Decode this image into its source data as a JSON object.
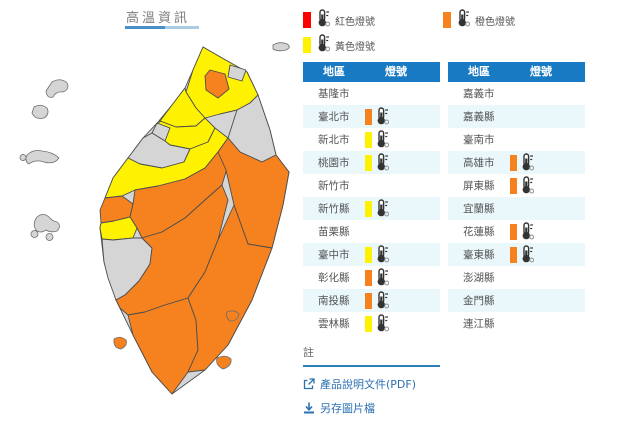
{
  "title": "高溫資訊",
  "legend": [
    {
      "key": "red",
      "label": "紅色燈號",
      "color": "#ff0000"
    },
    {
      "key": "yellow",
      "label": "黃色燈號",
      "color": "#fff200"
    },
    {
      "key": "orange",
      "label": "橙色燈號",
      "color": "#f5821f"
    }
  ],
  "level_colors": {
    "none": "#d5d5d5",
    "yellow": "#fff200",
    "orange": "#f5821f",
    "red": "#ff0000"
  },
  "table_headers": {
    "region": "地區",
    "signal": "燈號"
  },
  "tables": [
    {
      "rows": [
        {
          "region": "基隆市",
          "signal": "none"
        },
        {
          "region": "臺北市",
          "signal": "orange"
        },
        {
          "region": "新北市",
          "signal": "yellow"
        },
        {
          "region": "桃園市",
          "signal": "yellow"
        },
        {
          "region": "新竹市",
          "signal": "none"
        },
        {
          "region": "新竹縣",
          "signal": "yellow"
        },
        {
          "region": "苗栗縣",
          "signal": "none"
        },
        {
          "region": "臺中市",
          "signal": "yellow"
        },
        {
          "region": "彰化縣",
          "signal": "orange"
        },
        {
          "region": "南投縣",
          "signal": "orange"
        },
        {
          "region": "雲林縣",
          "signal": "yellow"
        }
      ]
    },
    {
      "rows": [
        {
          "region": "嘉義市",
          "signal": "none"
        },
        {
          "region": "嘉義縣",
          "signal": "none"
        },
        {
          "region": "臺南市",
          "signal": "none"
        },
        {
          "region": "高雄市",
          "signal": "orange"
        },
        {
          "region": "屏東縣",
          "signal": "orange"
        },
        {
          "region": "宜蘭縣",
          "signal": "none"
        },
        {
          "region": "花蓮縣",
          "signal": "orange"
        },
        {
          "region": "臺東縣",
          "signal": "orange"
        },
        {
          "region": "澎湖縣",
          "signal": "none"
        },
        {
          "region": "金門縣",
          "signal": "none"
        },
        {
          "region": "連江縣",
          "signal": "none"
        }
      ]
    }
  ],
  "map": {
    "counties": {
      "base": "none",
      "keelung": "none",
      "taipei-city": "orange",
      "new-taipei": "yellow",
      "yilan": "none",
      "taoyuan": "yellow",
      "hsinchu-county": "yellow",
      "hsinchu-city": "none",
      "miaoli": "none",
      "taichung": "yellow",
      "changhua": "orange",
      "nantou": "orange",
      "yunlin": "yellow",
      "chiayi-tainan": "none",
      "kaohsiung": "orange",
      "pingtung": "orange",
      "hualien": "orange",
      "taitung": "orange",
      "penghu": "none",
      "kinmen": "none",
      "matsu": "none",
      "guishan-island": "none",
      "liuqiu-island": "orange",
      "green-island": "orange",
      "orchid-island": "orange"
    }
  },
  "notes": {
    "heading": "註",
    "links": [
      {
        "label": "產品說明文件(PDF)"
      },
      {
        "label": "另存圖片檔"
      }
    ]
  }
}
